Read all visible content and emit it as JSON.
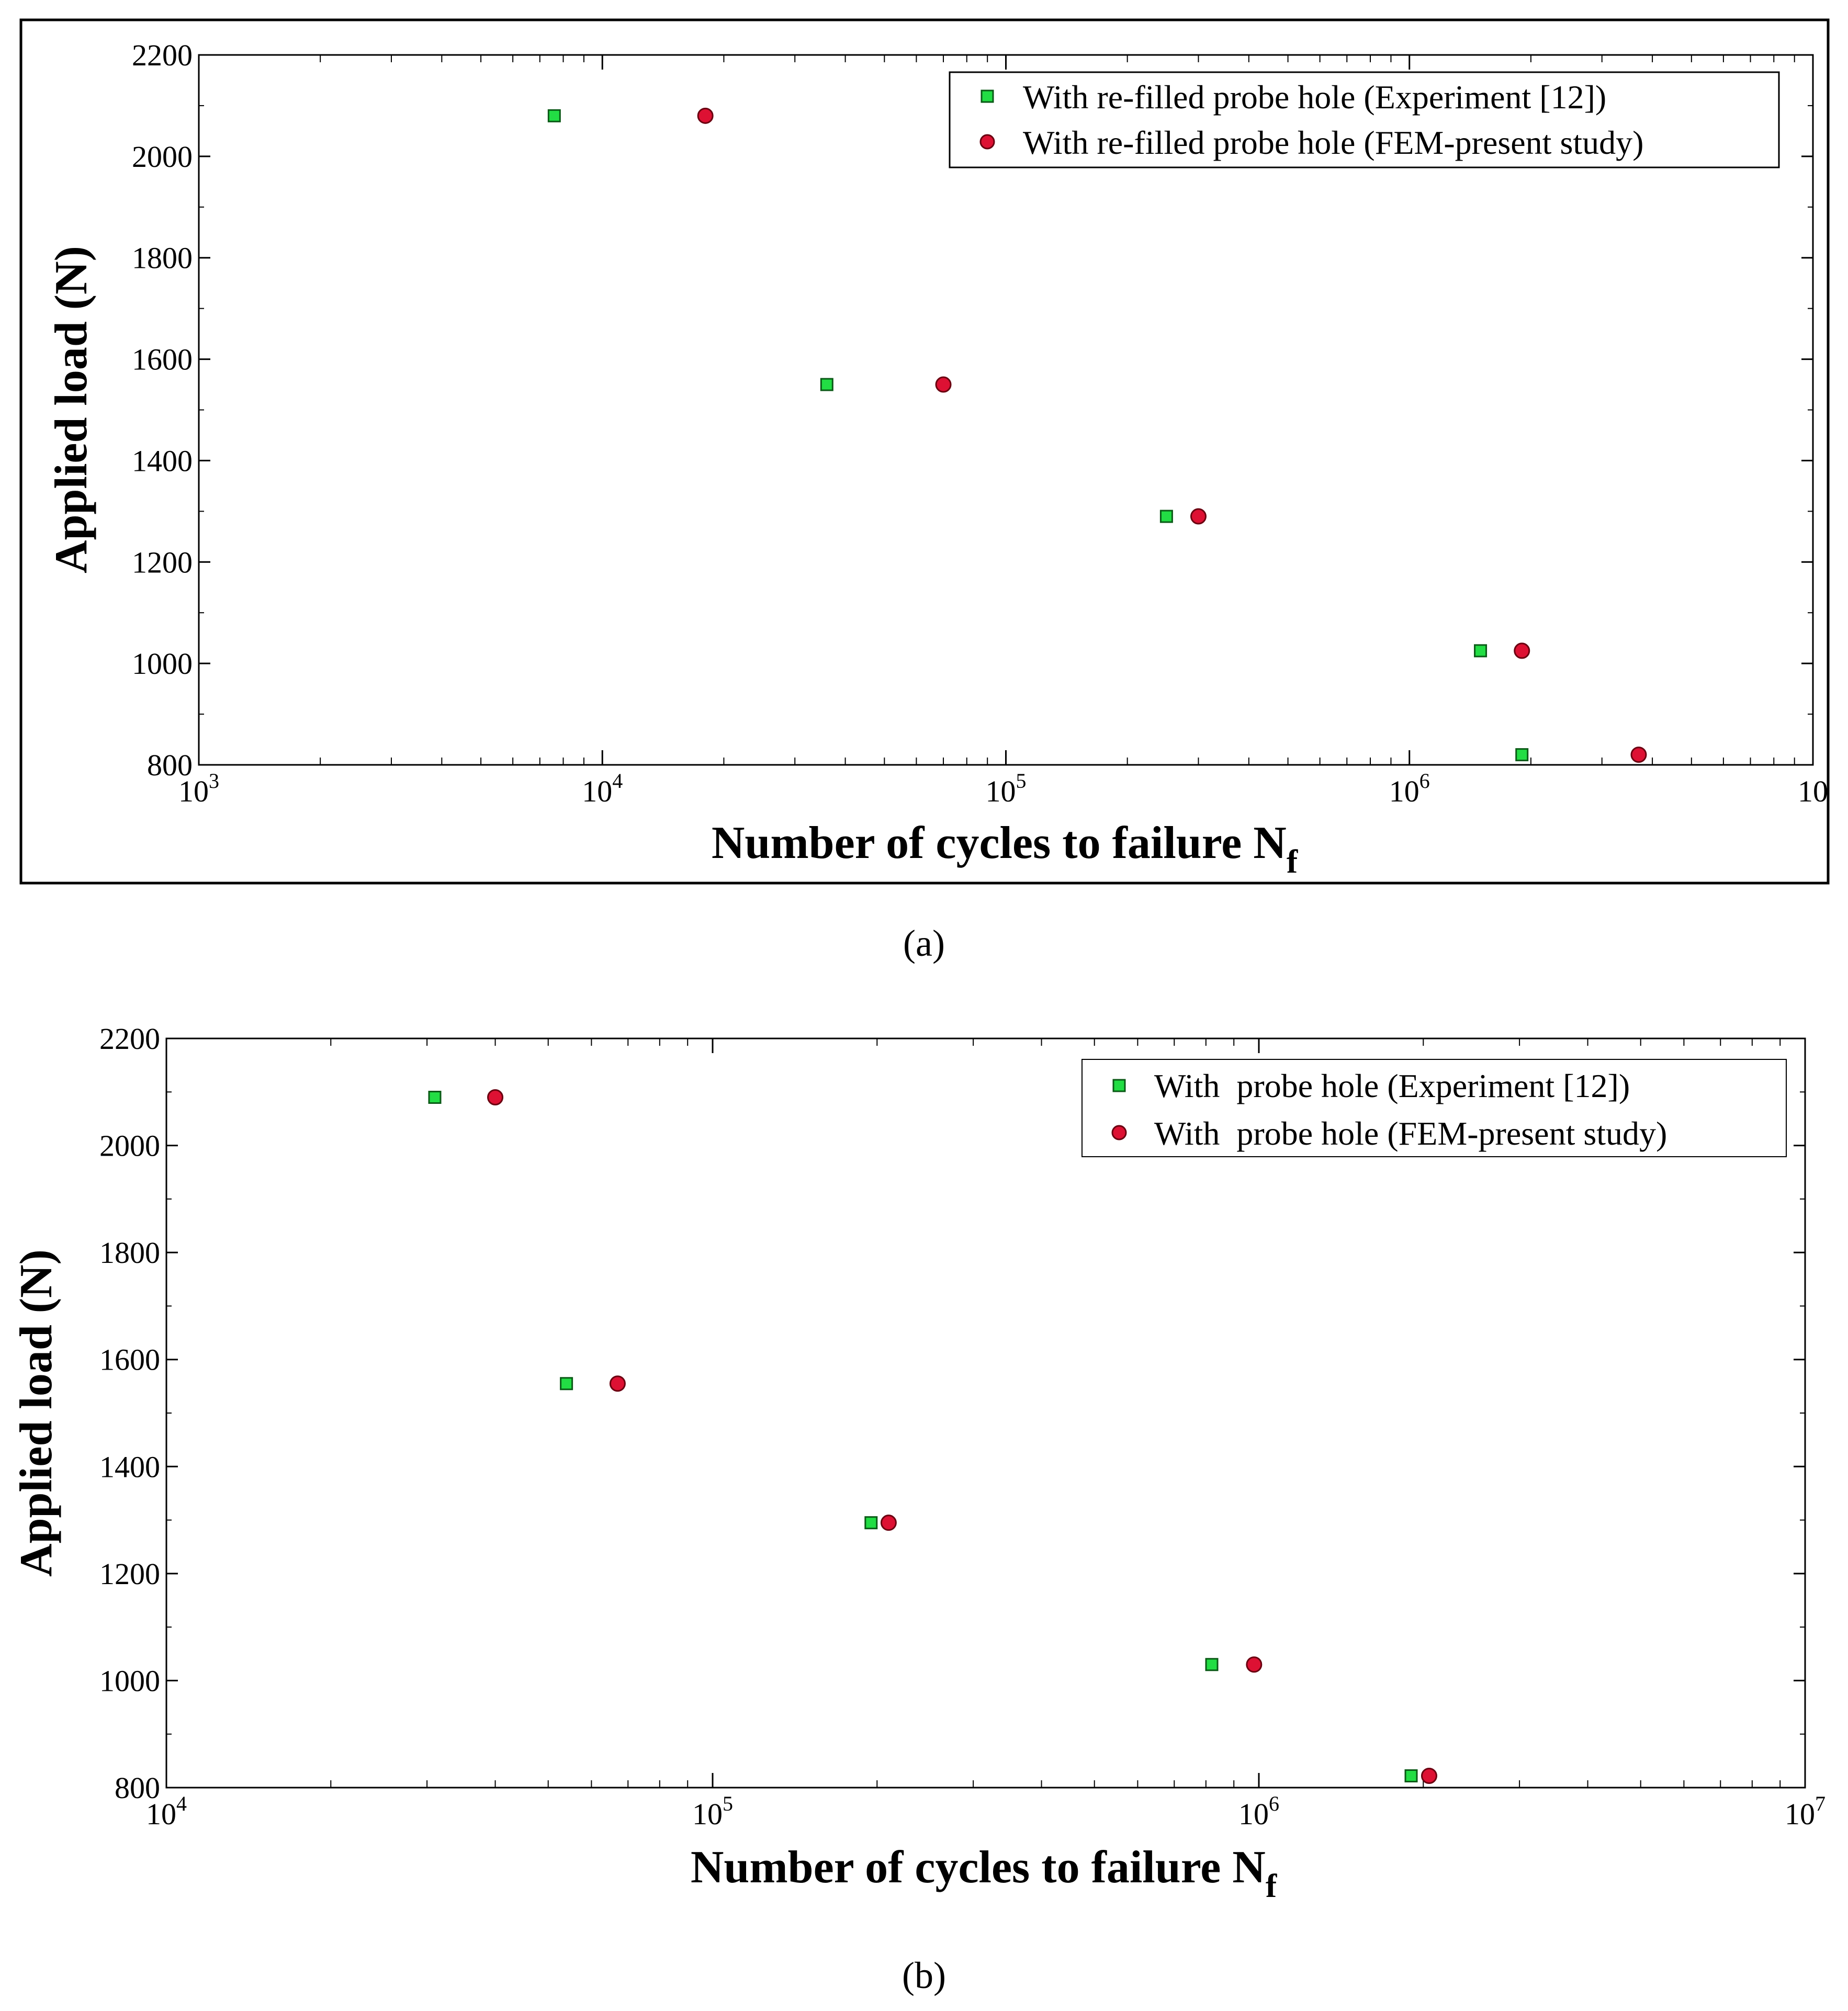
{
  "chart_data": [
    {
      "type": "scatter",
      "panel_label": "(a)",
      "xscale": "log",
      "xlim": [
        1000,
        10000000
      ],
      "ylim": [
        800,
        2200
      ],
      "ylabel": "Applied load (N)",
      "xlabel_main": "Number of cycles to failure N",
      "xlabel_sub": "f",
      "x_tick_bases": [
        "10",
        "10",
        "10",
        "10",
        "10"
      ],
      "x_tick_exps": [
        "3",
        "4",
        "5",
        "6",
        ""
      ],
      "y_ticks": [
        "800",
        "1000",
        "1200",
        "1400",
        "1600",
        "1800",
        "2000",
        "2200"
      ],
      "legend_position": "top-right",
      "series": [
        {
          "name": "With re-filled probe hole (Experiment [12])",
          "marker": "square",
          "color": "#22dd44",
          "x": [
            7600,
            36000,
            250000,
            1500000,
            1900000
          ],
          "y": [
            2080,
            1550,
            1290,
            1025,
            820
          ]
        },
        {
          "name": "With re-filled probe hole (FEM-present study)",
          "marker": "circle",
          "color": "#dd1133",
          "x": [
            18000,
            70000,
            300000,
            1900000,
            3700000
          ],
          "y": [
            2080,
            1550,
            1290,
            1025,
            820
          ]
        }
      ]
    },
    {
      "type": "scatter",
      "panel_label": "(b)",
      "xscale": "log",
      "xlim": [
        10000,
        10000000
      ],
      "ylim": [
        800,
        2200
      ],
      "ylabel": "Applied load (N)",
      "xlabel_main": "Number of cycles to failure N",
      "xlabel_sub": "f",
      "x_tick_bases": [
        "10",
        "10",
        "10",
        "10"
      ],
      "x_tick_exps": [
        "4",
        "5",
        "6",
        "7"
      ],
      "y_ticks": [
        "800",
        "1000",
        "1200",
        "1400",
        "1600",
        "1800",
        "2000",
        "2200"
      ],
      "legend_position": "top-right",
      "series": [
        {
          "name": "With  probe hole (Experiment [12])",
          "marker": "square",
          "color": "#22dd44",
          "x": [
            31000,
            54000,
            195000,
            820000,
            1900000
          ],
          "y": [
            2090,
            1555,
            1295,
            1030,
            822
          ]
        },
        {
          "name": "With  probe hole (FEM-present study)",
          "marker": "circle",
          "color": "#dd1133",
          "x": [
            40000,
            67000,
            210000,
            980000,
            2050000
          ],
          "y": [
            2090,
            1555,
            1295,
            1030,
            822
          ]
        }
      ]
    }
  ]
}
